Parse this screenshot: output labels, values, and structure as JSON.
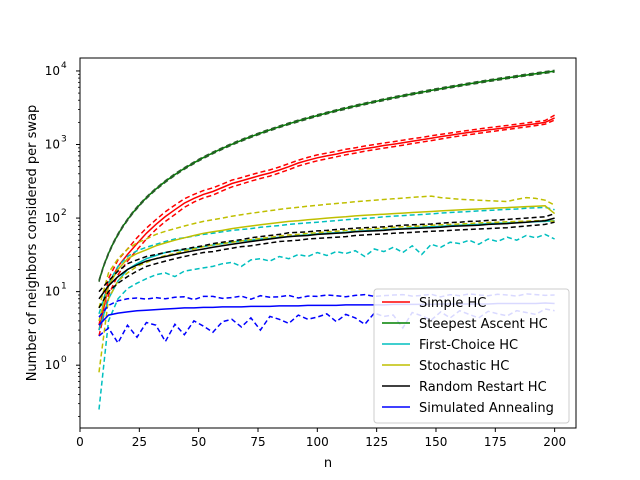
{
  "chart_data": {
    "type": "line",
    "title": "",
    "xlabel": "n",
    "ylabel": "Number of neighbors considered per swap",
    "xlim": [
      0,
      209
    ],
    "ylim": [
      0.14,
      15000
    ],
    "yscale": "log",
    "x_ticks": [
      0,
      25,
      50,
      75,
      100,
      125,
      150,
      175,
      200
    ],
    "y_ticks": [
      {
        "value": 1,
        "label_base": "10",
        "label_exp": "0"
      },
      {
        "value": 10,
        "label_base": "10",
        "label_exp": "1"
      },
      {
        "value": 100,
        "label_base": "10",
        "label_exp": "2"
      },
      {
        "value": 1000,
        "label_base": "10",
        "label_exp": "3"
      },
      {
        "value": 10000,
        "label_base": "10",
        "label_exp": "4"
      }
    ],
    "legend_position": "lower-right",
    "grid": false,
    "x": [
      8,
      12,
      16,
      20,
      24,
      28,
      32,
      36,
      40,
      44,
      48,
      52,
      56,
      60,
      64,
      68,
      72,
      76,
      80,
      84,
      88,
      92,
      96,
      100,
      104,
      108,
      112,
      116,
      120,
      124,
      128,
      132,
      136,
      140,
      144,
      148,
      152,
      156,
      160,
      164,
      168,
      172,
      176,
      180,
      184,
      188,
      192,
      196,
      200
    ],
    "series": [
      {
        "name": "Simple HC",
        "color": "#ff0000",
        "mean": [
          3,
          12,
          22,
          32,
          45,
          62,
          82,
          105,
          130,
          160,
          185,
          210,
          230,
          260,
          295,
          320,
          350,
          380,
          410,
          450,
          500,
          560,
          610,
          660,
          700,
          740,
          790,
          830,
          880,
          920,
          970,
          1010,
          1060,
          1110,
          1160,
          1220,
          1280,
          1340,
          1400,
          1460,
          1520,
          1580,
          1640,
          1700,
          1770,
          1840,
          1920,
          2000,
          2300
        ],
        "lower": [
          2.5,
          9,
          17,
          26,
          37,
          52,
          70,
          90,
          112,
          140,
          165,
          188,
          205,
          235,
          265,
          290,
          318,
          345,
          372,
          410,
          455,
          510,
          555,
          600,
          640,
          680,
          725,
          765,
          810,
          850,
          895,
          935,
          980,
          1030,
          1080,
          1130,
          1190,
          1250,
          1305,
          1360,
          1420,
          1480,
          1540,
          1600,
          1665,
          1730,
          1810,
          1890,
          2150
        ],
        "upper": [
          3.5,
          15,
          27,
          38,
          54,
          73,
          95,
          122,
          150,
          183,
          210,
          236,
          258,
          290,
          328,
          355,
          388,
          420,
          452,
          495,
          550,
          612,
          668,
          722,
          765,
          808,
          860,
          903,
          955,
          998,
          1050,
          1092,
          1145,
          1198,
          1250,
          1312,
          1374,
          1436,
          1500,
          1562,
          1625,
          1690,
          1752,
          1815,
          1888,
          1960,
          2045,
          2120,
          2500
        ]
      },
      {
        "name": "Steepest Ascent HC",
        "color": "#008000",
        "formula": "n(n-1)/4"
      },
      {
        "name": "First-Choice HC",
        "color": "#00bfbf",
        "mean": [
          3,
          8,
          14,
          20,
          24,
          28,
          31,
          34,
          36,
          37,
          39,
          41,
          43,
          45,
          47,
          49,
          50,
          52,
          53,
          55,
          56,
          58,
          59,
          61,
          62,
          63,
          64,
          66,
          67,
          68,
          69,
          71,
          72,
          74,
          75,
          76,
          77,
          79,
          80,
          81,
          82,
          84,
          85,
          86,
          87,
          88,
          89,
          90,
          92
        ],
        "lower": [
          0.25,
          4,
          8,
          11,
          13,
          15,
          17,
          18,
          16,
          19,
          20,
          21,
          22,
          24,
          25,
          22,
          27,
          28,
          26,
          30,
          28,
          32,
          30,
          34,
          31,
          35,
          33,
          36,
          30,
          38,
          35,
          40,
          34,
          42,
          32,
          44,
          40,
          47,
          45,
          50,
          44,
          52,
          48,
          55,
          50,
          58,
          54,
          60,
          52
        ],
        "upper": [
          5,
          13,
          22,
          30,
          36,
          40,
          44,
          48,
          52,
          54,
          57,
          60,
          62,
          65,
          68,
          70,
          72,
          75,
          77,
          79,
          82,
          84,
          86,
          88,
          90,
          92,
          95,
          97,
          99,
          101,
          104,
          106,
          108,
          110,
          112,
          114,
          117,
          119,
          121,
          123,
          125,
          127,
          129,
          131,
          133,
          136,
          138,
          140,
          130
        ]
      },
      {
        "name": "Stochastic HC",
        "color": "#bfbf00",
        "mean": [
          4,
          12,
          20,
          28,
          33,
          37,
          42,
          46,
          50,
          54,
          58,
          62,
          65,
          68,
          72,
          75,
          78,
          81,
          84,
          87,
          90,
          92,
          95,
          97,
          100,
          102,
          104,
          107,
          109,
          111,
          113,
          115,
          117,
          119,
          121,
          123,
          125,
          127,
          129,
          131,
          133,
          135,
          137,
          139,
          141,
          143,
          145,
          147,
          115
        ],
        "lower": [
          0.8,
          8,
          14,
          18,
          22,
          25,
          28,
          31,
          33,
          36,
          38,
          41,
          43,
          45,
          47,
          49,
          51,
          53,
          55,
          57,
          59,
          60,
          62,
          63,
          65,
          66,
          68,
          69,
          71,
          72,
          73,
          75,
          76,
          77,
          78,
          80,
          81,
          82,
          83,
          84,
          86,
          87,
          88,
          89,
          90,
          91,
          92,
          93,
          90
        ],
        "upper": [
          6,
          18,
          28,
          38,
          46,
          52,
          60,
          66,
          72,
          78,
          84,
          90,
          95,
          100,
          106,
          111,
          116,
          121,
          126,
          131,
          136,
          140,
          145,
          149,
          154,
          158,
          162,
          167,
          171,
          175,
          179,
          183,
          187,
          191,
          195,
          199,
          190,
          185,
          180,
          178,
          175,
          172,
          170,
          168,
          180,
          190,
          185,
          175,
          150
        ]
      },
      {
        "name": "Random Restart HC",
        "color": "#000000",
        "mean": [
          8,
          12,
          16,
          20,
          23,
          26,
          28,
          30,
          32,
          34,
          36,
          38,
          40,
          42,
          44,
          46,
          48,
          50,
          52,
          54,
          56,
          57,
          58,
          60,
          61,
          62,
          63,
          65,
          66,
          67,
          68,
          70,
          71,
          72,
          73,
          74,
          75,
          77,
          78,
          79,
          80,
          82,
          83,
          84,
          86,
          88,
          90,
          92,
          100
        ],
        "lower": [
          6,
          10,
          13,
          16,
          19,
          22,
          24,
          26,
          28,
          30,
          32,
          34,
          35,
          37,
          39,
          41,
          42,
          44,
          46,
          48,
          49,
          50,
          52,
          53,
          54,
          55,
          56,
          58,
          59,
          60,
          61,
          62,
          63,
          64,
          65,
          66,
          67,
          68,
          69,
          70,
          71,
          72,
          73,
          74,
          76,
          78,
          80,
          82,
          88
        ],
        "upper": [
          10,
          14,
          19,
          24,
          27,
          30,
          32,
          34,
          36,
          38,
          40,
          42,
          45,
          47,
          49,
          51,
          54,
          56,
          58,
          60,
          63,
          64,
          65,
          67,
          68,
          70,
          71,
          73,
          74,
          75,
          76,
          78,
          80,
          81,
          82,
          83,
          85,
          87,
          88,
          90,
          91,
          93,
          94,
          96,
          98,
          100,
          102,
          104,
          115
        ]
      },
      {
        "name": "Simulated Annealing",
        "color": "#0000ff",
        "mean": [
          3.5,
          4.8,
          5.1,
          5.3,
          5.5,
          5.6,
          5.7,
          5.8,
          5.9,
          6.0,
          6.0,
          6.1,
          6.1,
          6.2,
          6.2,
          6.2,
          6.3,
          6.3,
          6.3,
          6.4,
          6.4,
          6.4,
          6.5,
          6.5,
          6.5,
          6.5,
          6.6,
          6.6,
          6.6,
          6.6,
          6.6,
          6.7,
          6.7,
          6.7,
          6.7,
          6.7,
          6.8,
          6.8,
          6.8,
          6.8,
          6.8,
          6.8,
          6.9,
          6.9,
          6.9,
          6.9,
          6.9,
          7.0,
          6.9
        ],
        "lower": [
          2.5,
          3.2,
          2.0,
          3.5,
          2.4,
          3.8,
          3.5,
          2.1,
          3.6,
          2.6,
          4.0,
          3.4,
          2.8,
          3.9,
          4.2,
          3.3,
          4.4,
          3.0,
          4.6,
          4.2,
          3.7,
          4.8,
          4.2,
          4.5,
          5.0,
          3.9,
          4.9,
          4.4,
          3.6,
          5.1,
          4.6,
          4.8,
          3.2,
          5.2,
          4.7,
          4.1,
          5.3,
          4.4,
          5.5,
          4.9,
          4.4,
          5.4,
          5.0,
          4.7,
          5.5,
          5.2,
          4.9,
          5.8,
          5.5
        ],
        "upper": [
          4.5,
          6.5,
          7.5,
          8.0,
          8.2,
          7.9,
          8.3,
          8.0,
          8.4,
          8.5,
          7.8,
          8.6,
          8.6,
          8.1,
          8.3,
          8.7,
          7.9,
          8.8,
          8.4,
          8.5,
          8.9,
          8.2,
          8.7,
          8.6,
          9.0,
          8.8,
          8.5,
          8.9,
          9.1,
          8.6,
          8.8,
          9.0,
          9.1,
          8.7,
          8.9,
          9.2,
          8.5,
          9.1,
          8.8,
          9.3,
          9.0,
          8.8,
          9.2,
          9.0,
          8.7,
          9.3,
          9.1,
          8.9,
          9.0
        ]
      }
    ]
  }
}
